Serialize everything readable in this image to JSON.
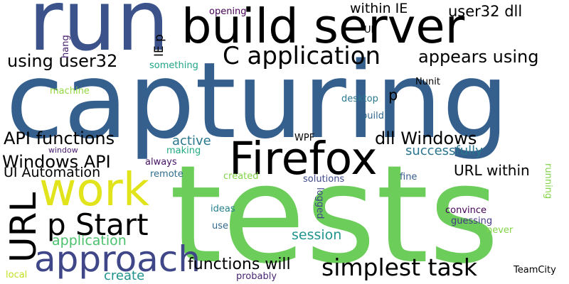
{
  "words": [
    {
      "id": "tests",
      "text": "tests",
      "color": "#6ccd5a"
    },
    {
      "id": "capturing",
      "text": "capturing",
      "color": "#355f8d"
    },
    {
      "id": "run",
      "text": "run",
      "color": "#3b528b"
    },
    {
      "id": "build-server",
      "text": "build server",
      "color": "#3cbb75"
    },
    {
      "id": "firefox",
      "text": "Firefox",
      "color": "#dde318"
    },
    {
      "id": "work",
      "text": "work",
      "color": "#e1e31b"
    },
    {
      "id": "url-vertical",
      "text": "URL",
      "color": "#3e4989"
    },
    {
      "id": "approach",
      "text": "approach",
      "color": "#3f4788"
    },
    {
      "id": "p-start",
      "text": "p Start",
      "color": "#2c728e"
    },
    {
      "id": "c-application",
      "text": "C application",
      "color": "#40bd72"
    },
    {
      "id": "simplest-task",
      "text": "simplest task",
      "color": "#33638d"
    },
    {
      "id": "using-user32",
      "text": "using user32",
      "color": "#440154"
    },
    {
      "id": "appears-using",
      "text": "appears using",
      "color": "#38598c"
    },
    {
      "id": "api-functions",
      "text": "API functions",
      "color": "#84d44b"
    },
    {
      "id": "dll-windows",
      "text": "dll Windows",
      "color": "#27ad81"
    },
    {
      "id": "windows-api",
      "text": "Windows API",
      "color": "#3b528b"
    },
    {
      "id": "functions-will",
      "text": "functions will",
      "color": "#471164"
    },
    {
      "id": "user32-dll",
      "text": "user32 dll",
      "color": "#1f9e89"
    },
    {
      "id": "within-ie",
      "text": "within IE",
      "color": "#482878"
    },
    {
      "id": "url-within",
      "text": "URL within",
      "color": "#25858e"
    },
    {
      "id": "application",
      "text": "application",
      "color": "#4ac16d"
    },
    {
      "id": "ui-automation",
      "text": "UI Automation",
      "color": "#75d054"
    },
    {
      "id": "successfully",
      "text": "successfully",
      "color": "#2a768e"
    },
    {
      "id": "session",
      "text": "session",
      "color": "#1f958b"
    },
    {
      "id": "active",
      "text": "active",
      "color": "#2a788e"
    },
    {
      "id": "create",
      "text": "create",
      "color": "#20928c"
    },
    {
      "id": "ie-p",
      "text": "IE p",
      "color": "#3b528b"
    },
    {
      "id": "p-small",
      "text": "p",
      "color": "#3cbb75"
    },
    {
      "id": "making",
      "text": "making",
      "color": "#24aa83"
    },
    {
      "id": "always",
      "text": "always",
      "color": "#471365"
    },
    {
      "id": "remote",
      "text": "remote",
      "color": "#2e6e8e"
    },
    {
      "id": "created",
      "text": "created",
      "color": "#84d44b"
    },
    {
      "id": "solutions",
      "text": "solutions",
      "color": "#3e4989"
    },
    {
      "id": "fine",
      "text": "fine",
      "color": "#365c8d"
    },
    {
      "id": "logged",
      "text": "logged",
      "color": "#3f4788"
    },
    {
      "id": "ideas",
      "text": "ideas",
      "color": "#26828e"
    },
    {
      "id": "use",
      "text": "use",
      "color": "#31688e"
    },
    {
      "id": "probably",
      "text": "probably",
      "color": "#482475"
    },
    {
      "id": "convince",
      "text": "convince",
      "color": "#440154"
    },
    {
      "id": "guessing",
      "text": "guessing",
      "color": "#443983"
    },
    {
      "id": "never",
      "text": "never",
      "color": "#84d44b"
    },
    {
      "id": "teamcity",
      "text": "TeamCity",
      "color": "#2f6c8e"
    },
    {
      "id": "running",
      "text": "running",
      "color": "#84d44b"
    },
    {
      "id": "nunit",
      "text": "Nunit",
      "color": "#27ad81"
    },
    {
      "id": "desktop",
      "text": "desktop",
      "color": "#2a788e"
    },
    {
      "id": "build",
      "text": "build",
      "color": "#31688e"
    },
    {
      "id": "wpf",
      "text": "WPF",
      "color": "#b5de2b"
    },
    {
      "id": "something",
      "text": "something",
      "color": "#20a486"
    },
    {
      "id": "ui",
      "text": "UI",
      "color": "#25838e"
    },
    {
      "id": "opening",
      "text": "opening",
      "color": "#440154"
    },
    {
      "id": "hang",
      "text": "hang",
      "color": "#482071"
    },
    {
      "id": "machine",
      "text": "machine",
      "color": "#95d840"
    },
    {
      "id": "window",
      "text": "window",
      "color": "#481c6e"
    },
    {
      "id": "local",
      "text": "local",
      "color": "#c2df23"
    }
  ]
}
